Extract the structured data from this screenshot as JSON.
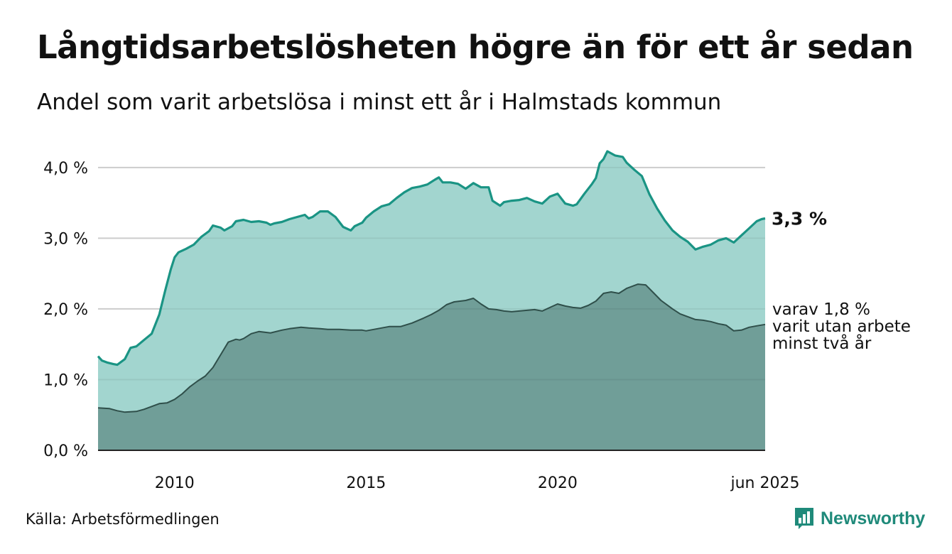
{
  "title": "Långtidsarbetslösheten högre än för ett år sedan",
  "subtitle": "Andel som varit arbetslösa i minst ett år i Halmstads kommun",
  "source": "Källa: Arbetsförmedlingen",
  "brand": "Newsworthy",
  "colors": {
    "line1": "#1a9484",
    "fill1": "#a2d5cf",
    "line2": "#2f4f4a",
    "fill2": "#709e98",
    "grid": "#d9d9d9",
    "brand": "#1f8a7a"
  },
  "chart_data": {
    "type": "area",
    "xlim": [
      2008.0,
      2025.42
    ],
    "ylim": [
      0.0,
      4.3
    ],
    "yticks": [
      {
        "value": 0.0,
        "label": "0,0 %"
      },
      {
        "value": 1.0,
        "label": "1,0 %"
      },
      {
        "value": 2.0,
        "label": "2,0 %"
      },
      {
        "value": 3.0,
        "label": "3,0 %"
      },
      {
        "value": 4.0,
        "label": "4,0 %"
      }
    ],
    "xticks": [
      {
        "value": 2010,
        "label": "2010"
      },
      {
        "value": 2015,
        "label": "2015"
      },
      {
        "value": 2020,
        "label": "2020"
      },
      {
        "value": 2025.42,
        "label": "jun 2025"
      }
    ],
    "grid": true,
    "series": [
      {
        "key": "minst_ett_ar",
        "x": [
          2008.0,
          2008.1,
          2008.25,
          2008.4,
          2008.5,
          2008.7,
          2008.85,
          2009.0,
          2009.2,
          2009.4,
          2009.6,
          2009.75,
          2009.9,
          2010.0,
          2010.1,
          2010.3,
          2010.5,
          2010.7,
          2010.9,
          2011.0,
          2011.2,
          2011.3,
          2011.5,
          2011.6,
          2011.8,
          2012.0,
          2012.2,
          2012.4,
          2012.5,
          2012.6,
          2012.8,
          2013.0,
          2013.2,
          2013.4,
          2013.5,
          2013.6,
          2013.8,
          2014.0,
          2014.2,
          2014.4,
          2014.6,
          2014.7,
          2014.9,
          2015.0,
          2015.2,
          2015.4,
          2015.6,
          2015.8,
          2016.0,
          2016.2,
          2016.4,
          2016.6,
          2016.8,
          2016.9,
          2017.0,
          2017.2,
          2017.4,
          2017.6,
          2017.8,
          2018.0,
          2018.2,
          2018.3,
          2018.5,
          2018.6,
          2018.8,
          2019.0,
          2019.2,
          2019.4,
          2019.6,
          2019.8,
          2020.0,
          2020.2,
          2020.4,
          2020.5,
          2020.7,
          2020.9,
          2021.0,
          2021.1,
          2021.2,
          2021.3,
          2021.5,
          2021.7,
          2021.8,
          2022.0,
          2022.2,
          2022.4,
          2022.6,
          2022.8,
          2023.0,
          2023.2,
          2023.4,
          2023.6,
          2023.8,
          2024.0,
          2024.2,
          2024.4,
          2024.6,
          2024.8,
          2025.0,
          2025.2,
          2025.33,
          2025.42
        ],
        "y": [
          1.33,
          1.27,
          1.24,
          1.22,
          1.21,
          1.29,
          1.45,
          1.47,
          1.56,
          1.65,
          1.92,
          2.25,
          2.56,
          2.73,
          2.8,
          2.85,
          2.91,
          3.02,
          3.1,
          3.18,
          3.15,
          3.11,
          3.17,
          3.24,
          3.26,
          3.23,
          3.24,
          3.22,
          3.19,
          3.21,
          3.23,
          3.27,
          3.3,
          3.33,
          3.28,
          3.3,
          3.38,
          3.38,
          3.3,
          3.16,
          3.11,
          3.17,
          3.22,
          3.29,
          3.38,
          3.45,
          3.48,
          3.57,
          3.65,
          3.71,
          3.73,
          3.76,
          3.83,
          3.86,
          3.79,
          3.79,
          3.77,
          3.7,
          3.78,
          3.72,
          3.72,
          3.53,
          3.46,
          3.51,
          3.53,
          3.54,
          3.57,
          3.52,
          3.49,
          3.59,
          3.63,
          3.49,
          3.46,
          3.48,
          3.63,
          3.77,
          3.85,
          4.06,
          4.12,
          4.23,
          4.17,
          4.15,
          4.07,
          3.97,
          3.88,
          3.62,
          3.42,
          3.25,
          3.11,
          3.02,
          2.95,
          2.84,
          2.88,
          2.91,
          2.97,
          3.0,
          2.94,
          3.04,
          3.14,
          3.24,
          3.27,
          3.28
        ],
        "label": "3,3 %"
      },
      {
        "key": "minst_tva_ar",
        "x": [
          2008.0,
          2008.3,
          2008.5,
          2008.7,
          2009.0,
          2009.2,
          2009.4,
          2009.6,
          2009.8,
          2010.0,
          2010.2,
          2010.4,
          2010.6,
          2010.8,
          2011.0,
          2011.2,
          2011.4,
          2011.6,
          2011.7,
          2011.8,
          2012.0,
          2012.2,
          2012.5,
          2012.8,
          2013.0,
          2013.3,
          2013.5,
          2013.8,
          2014.0,
          2014.3,
          2014.6,
          2014.9,
          2015.0,
          2015.3,
          2015.6,
          2015.9,
          2016.2,
          2016.5,
          2016.7,
          2016.9,
          2017.1,
          2017.3,
          2017.6,
          2017.8,
          2018.0,
          2018.2,
          2018.4,
          2018.6,
          2018.8,
          2019.0,
          2019.2,
          2019.4,
          2019.6,
          2019.8,
          2020.0,
          2020.2,
          2020.4,
          2020.6,
          2020.8,
          2021.0,
          2021.2,
          2021.4,
          2021.6,
          2021.8,
          2022.0,
          2022.1,
          2022.3,
          2022.5,
          2022.7,
          2022.9,
          2023.0,
          2023.2,
          2023.4,
          2023.6,
          2023.8,
          2024.0,
          2024.2,
          2024.4,
          2024.6,
          2024.8,
          2025.0,
          2025.2,
          2025.42
        ],
        "y": [
          0.6,
          0.59,
          0.56,
          0.54,
          0.55,
          0.58,
          0.62,
          0.66,
          0.67,
          0.72,
          0.8,
          0.9,
          0.98,
          1.05,
          1.17,
          1.35,
          1.53,
          1.57,
          1.56,
          1.58,
          1.65,
          1.68,
          1.66,
          1.7,
          1.72,
          1.74,
          1.73,
          1.72,
          1.71,
          1.71,
          1.7,
          1.7,
          1.69,
          1.72,
          1.75,
          1.75,
          1.8,
          1.87,
          1.92,
          1.98,
          2.06,
          2.1,
          2.12,
          2.15,
          2.07,
          2.0,
          1.99,
          1.97,
          1.96,
          1.97,
          1.98,
          1.99,
          1.97,
          2.02,
          2.07,
          2.04,
          2.02,
          2.01,
          2.05,
          2.11,
          2.22,
          2.24,
          2.22,
          2.29,
          2.33,
          2.35,
          2.34,
          2.23,
          2.12,
          2.04,
          2.0,
          1.93,
          1.89,
          1.85,
          1.84,
          1.82,
          1.79,
          1.77,
          1.69,
          1.7,
          1.74,
          1.76,
          1.78
        ],
        "label": [
          "varav 1,8 %",
          "varit utan arbete",
          "minst två år"
        ]
      }
    ]
  }
}
